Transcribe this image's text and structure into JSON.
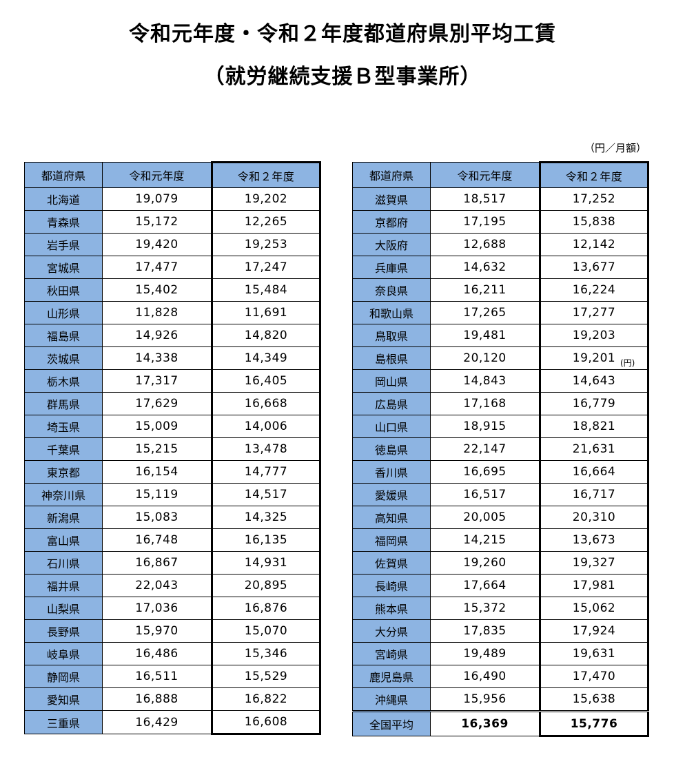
{
  "title_line1": "令和元年度・令和２年度都道府県別平均工賃",
  "title_line2": "（就労継続支援Ｂ型事業所）",
  "unit": "（円／月額）",
  "stray_note": "(円)",
  "headers": [
    "都道府県",
    "令和元年度",
    "令和２年度"
  ],
  "left_rows": [
    [
      "北海道",
      "19,079",
      "19,202"
    ],
    [
      "青森県",
      "15,172",
      "12,265"
    ],
    [
      "岩手県",
      "19,420",
      "19,253"
    ],
    [
      "宮城県",
      "17,477",
      "17,247"
    ],
    [
      "秋田県",
      "15,402",
      "15,484"
    ],
    [
      "山形県",
      "11,828",
      "11,691"
    ],
    [
      "福島県",
      "14,926",
      "14,820"
    ],
    [
      "茨城県",
      "14,338",
      "14,349"
    ],
    [
      "栃木県",
      "17,317",
      "16,405"
    ],
    [
      "群馬県",
      "17,629",
      "16,668"
    ],
    [
      "埼玉県",
      "15,009",
      "14,006"
    ],
    [
      "千葉県",
      "15,215",
      "13,478"
    ],
    [
      "東京都",
      "16,154",
      "14,777"
    ],
    [
      "神奈川県",
      "15,119",
      "14,517"
    ],
    [
      "新潟県",
      "15,083",
      "14,325"
    ],
    [
      "富山県",
      "16,748",
      "16,135"
    ],
    [
      "石川県",
      "16,867",
      "14,931"
    ],
    [
      "福井県",
      "22,043",
      "20,895"
    ],
    [
      "山梨県",
      "17,036",
      "16,876"
    ],
    [
      "長野県",
      "15,970",
      "15,070"
    ],
    [
      "岐阜県",
      "16,486",
      "15,346"
    ],
    [
      "静岡県",
      "16,511",
      "15,529"
    ],
    [
      "愛知県",
      "16,888",
      "16,822"
    ],
    [
      "三重県",
      "16,429",
      "16,608"
    ]
  ],
  "right_rows": [
    [
      "滋賀県",
      "18,517",
      "17,252"
    ],
    [
      "京都府",
      "17,195",
      "15,838"
    ],
    [
      "大阪府",
      "12,688",
      "12,142"
    ],
    [
      "兵庫県",
      "14,632",
      "13,677"
    ],
    [
      "奈良県",
      "16,211",
      "16,224"
    ],
    [
      "和歌山県",
      "17,265",
      "17,277"
    ],
    [
      "鳥取県",
      "19,481",
      "19,203"
    ],
    [
      "島根県",
      "20,120",
      "19,201"
    ],
    [
      "岡山県",
      "14,843",
      "14,643"
    ],
    [
      "広島県",
      "17,168",
      "16,779"
    ],
    [
      "山口県",
      "18,915",
      "18,821"
    ],
    [
      "徳島県",
      "22,147",
      "21,631"
    ],
    [
      "香川県",
      "16,695",
      "16,664"
    ],
    [
      "愛媛県",
      "16,517",
      "16,717"
    ],
    [
      "高知県",
      "20,005",
      "20,310"
    ],
    [
      "福岡県",
      "14,215",
      "13,673"
    ],
    [
      "佐賀県",
      "19,260",
      "19,327"
    ],
    [
      "長崎県",
      "17,664",
      "17,981"
    ],
    [
      "熊本県",
      "15,372",
      "15,062"
    ],
    [
      "大分県",
      "17,835",
      "17,924"
    ],
    [
      "宮崎県",
      "19,489",
      "19,631"
    ],
    [
      "鹿児島県",
      "16,490",
      "17,470"
    ],
    [
      "沖縄県",
      "15,956",
      "15,638"
    ],
    [
      "全国平均",
      "16,369",
      "15,776"
    ]
  ],
  "colors": {
    "header_fill": "#8db4e2"
  }
}
